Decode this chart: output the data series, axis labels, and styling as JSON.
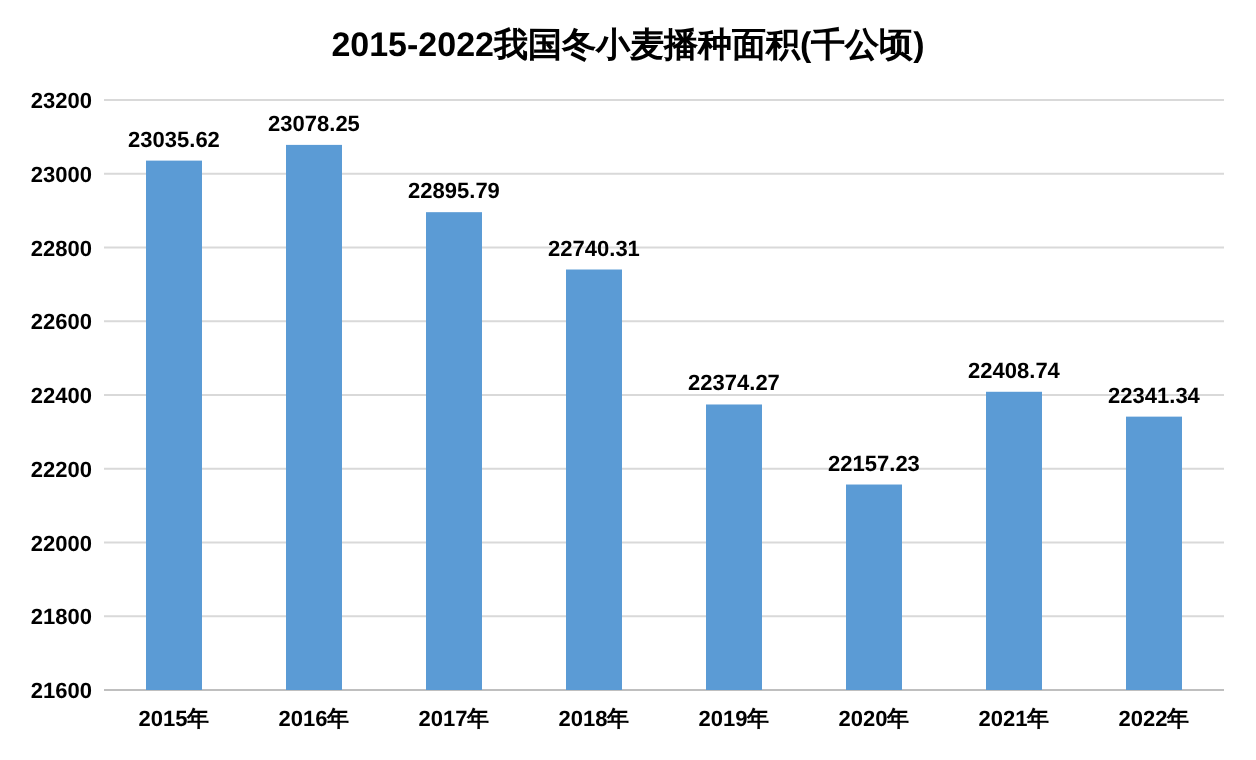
{
  "chart_data": {
    "type": "bar",
    "title": "2015-2022我国冬小麦播种面积(千公顷)",
    "categories": [
      "2015年",
      "2016年",
      "2017年",
      "2018年",
      "2019年",
      "2020年",
      "2021年",
      "2022年"
    ],
    "values": [
      23035.62,
      23078.25,
      22895.79,
      22740.31,
      22374.27,
      22157.23,
      22408.74,
      22341.34
    ],
    "color": "#5b9bd5",
    "ylim": [
      21600,
      23200
    ],
    "yticks": [
      21600,
      21800,
      22000,
      22200,
      22400,
      22600,
      22800,
      23000,
      23200
    ],
    "grid": "y",
    "data_labels": true
  }
}
